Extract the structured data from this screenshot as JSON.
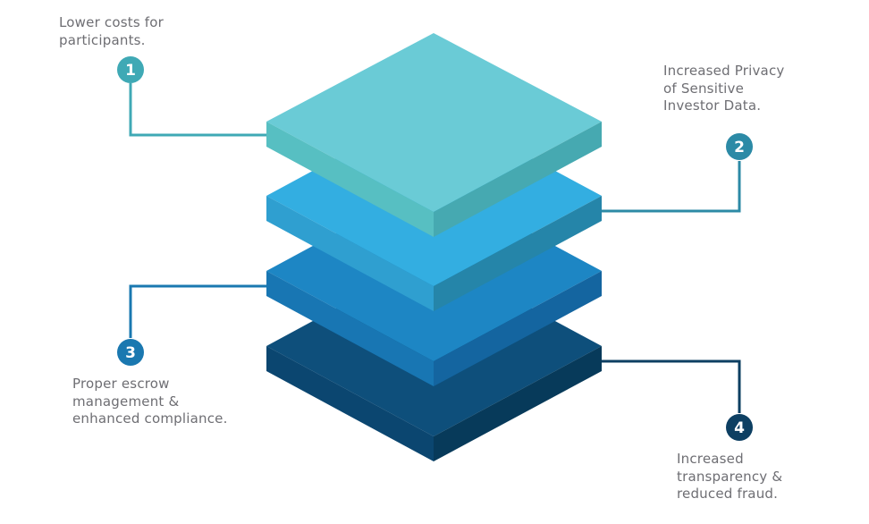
{
  "items": [
    {
      "number": "1",
      "lines": [
        "Lower costs for",
        "participants."
      ],
      "color": "#3fa9b5"
    },
    {
      "number": "2",
      "lines": [
        "Increased Privacy",
        "of Sensitive",
        "Investor Data."
      ],
      "color": "#2c8aa6"
    },
    {
      "number": "3",
      "lines": [
        "Proper escrow",
        "management &",
        "enhanced compliance."
      ],
      "color": "#1a78b0"
    },
    {
      "number": "4",
      "lines": [
        "Increased",
        "transparency &",
        "reduced fraud."
      ],
      "color": "#0d3f62"
    }
  ],
  "layers": [
    {
      "top": "#6acbd6",
      "left": "#57bfc2",
      "right": "#46a9b1"
    },
    {
      "top": "#33aee1",
      "left": "#2f9fd0",
      "right": "#2585a9"
    },
    {
      "top": "#1d86c4",
      "left": "#1876b3",
      "right": "#1465a0"
    },
    {
      "top": "#0e4f7b",
      "left": "#0b4670",
      "right": "#073a5a"
    }
  ]
}
